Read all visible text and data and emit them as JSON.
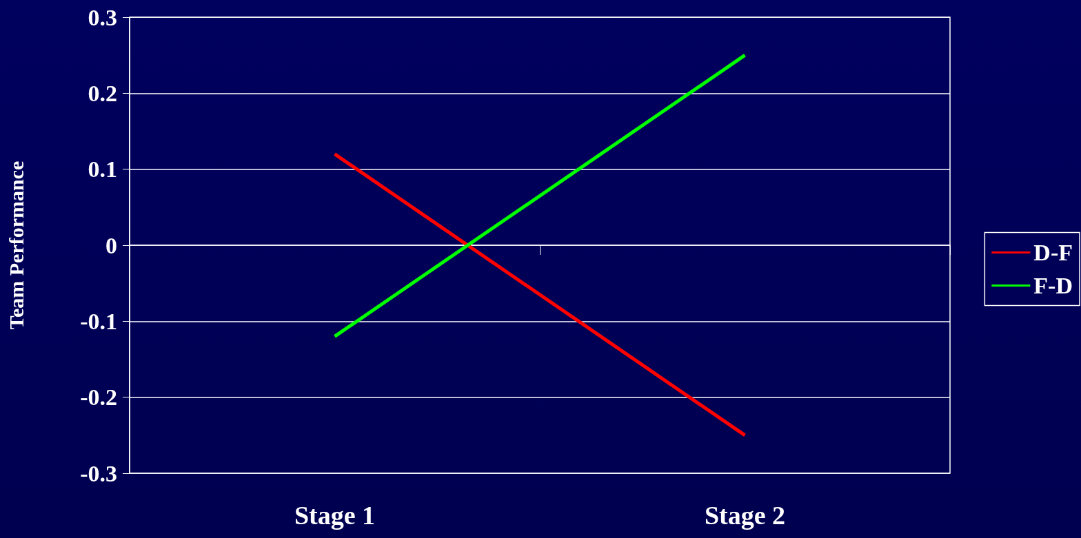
{
  "chart_data": {
    "type": "line",
    "ylabel": "Team Performance",
    "categories": [
      "Stage 1",
      "Stage 2"
    ],
    "series": [
      {
        "name": "D-F",
        "color": "#ff0000",
        "values": [
          0.12,
          -0.25
        ]
      },
      {
        "name": "F-D",
        "color": "#00ff00",
        "values": [
          -0.12,
          0.25
        ]
      }
    ],
    "ylim": [
      -0.3,
      0.3
    ],
    "yticks": [
      -0.3,
      -0.2,
      -0.1,
      0,
      0.1,
      0.2,
      0.3
    ],
    "grid": "y",
    "legend": "right",
    "marker": "none",
    "line_style": "solid"
  }
}
